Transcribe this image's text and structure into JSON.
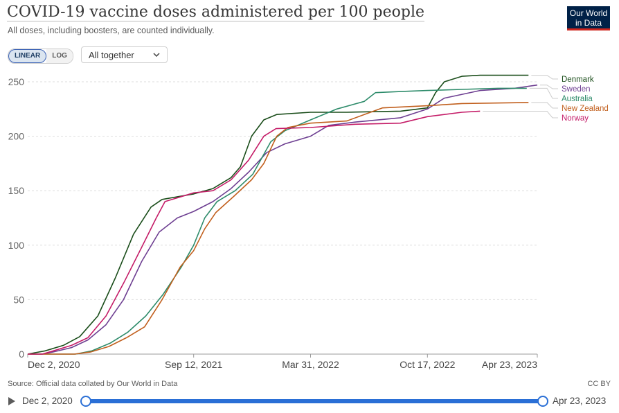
{
  "header": {
    "title": "COVID-19 vaccine doses administered per 100 people",
    "subtitle": "All doses, including boosters, are counted individually.",
    "logo_line1": "Our World",
    "logo_line2": "in Data"
  },
  "controls": {
    "linear_label": "LINEAR",
    "log_label": "LOG",
    "selected_scale": "LINEAR",
    "dropdown_value": "All together"
  },
  "footer": {
    "source": "Source: Official data collated by Our World in Data",
    "license": "CC BY"
  },
  "timeline": {
    "start_label": "Dec 2, 2020",
    "end_label": "Apr 23, 2023",
    "start_fraction": 0,
    "end_fraction": 1
  },
  "colors": {
    "Denmark": "#1a4d1a",
    "Sweden": "#6d3e91",
    "Australia": "#2d8b6a",
    "New Zealand": "#c15f1d",
    "Norway": "#c41b67",
    "grid": "#dddddd",
    "accent": "#2a6fd6"
  },
  "chart_data": {
    "type": "line",
    "title": "COVID-19 vaccine doses administered per 100 people",
    "subtitle": "All doses, including boosters, are counted individually.",
    "x_ticks": [
      "Dec 2, 2020",
      "Sep 12, 2021",
      "Mar 31, 2022",
      "Oct 17, 2022",
      "Apr 23, 2023"
    ],
    "x_range": [
      "2020-12-02",
      "2023-04-23"
    ],
    "ylim": [
      0,
      250
    ],
    "y_ticks": [
      0,
      50,
      100,
      150,
      200,
      250
    ],
    "grid": true,
    "legend": "right, labels at line ends",
    "series": [
      {
        "name": "Denmark",
        "points": [
          [
            "2020-12-02",
            0
          ],
          [
            "2021-01-01",
            3
          ],
          [
            "2021-02-01",
            8
          ],
          [
            "2021-03-01",
            16
          ],
          [
            "2021-04-01",
            35
          ],
          [
            "2021-05-01",
            70
          ],
          [
            "2021-06-01",
            110
          ],
          [
            "2021-07-01",
            135
          ],
          [
            "2021-07-20",
            142
          ],
          [
            "2021-09-12",
            147
          ],
          [
            "2021-10-15",
            152
          ],
          [
            "2021-11-15",
            162
          ],
          [
            "2021-12-01",
            172
          ],
          [
            "2021-12-20",
            200
          ],
          [
            "2022-01-10",
            215
          ],
          [
            "2022-02-01",
            220
          ],
          [
            "2022-03-31",
            222
          ],
          [
            "2022-06-01",
            222
          ],
          [
            "2022-09-01",
            223
          ],
          [
            "2022-10-17",
            226
          ],
          [
            "2022-10-31",
            240
          ],
          [
            "2022-11-15",
            250
          ],
          [
            "2022-12-15",
            255
          ],
          [
            "2023-01-15",
            256
          ],
          [
            "2023-04-08",
            256
          ]
        ]
      },
      {
        "name": "Sweden",
        "points": [
          [
            "2020-12-02",
            0
          ],
          [
            "2020-12-27",
            0
          ],
          [
            "2021-01-15",
            2
          ],
          [
            "2021-02-15",
            6
          ],
          [
            "2021-03-15",
            13
          ],
          [
            "2021-04-15",
            27
          ],
          [
            "2021-05-15",
            50
          ],
          [
            "2021-06-15",
            85
          ],
          [
            "2021-07-15",
            112
          ],
          [
            "2021-08-15",
            125
          ],
          [
            "2021-09-12",
            131
          ],
          [
            "2021-10-15",
            140
          ],
          [
            "2021-11-15",
            152
          ],
          [
            "2021-12-15",
            167
          ],
          [
            "2022-01-15",
            185
          ],
          [
            "2022-02-15",
            193
          ],
          [
            "2022-03-31",
            200
          ],
          [
            "2022-05-01",
            210
          ],
          [
            "2022-06-15",
            213
          ],
          [
            "2022-09-01",
            217
          ],
          [
            "2022-10-17",
            225
          ],
          [
            "2022-11-15",
            235
          ],
          [
            "2023-01-15",
            242
          ],
          [
            "2023-03-15",
            244
          ],
          [
            "2023-04-23",
            247
          ]
        ]
      },
      {
        "name": "Australia",
        "points": [
          [
            "2020-12-02",
            0
          ],
          [
            "2021-02-22",
            0
          ],
          [
            "2021-03-22",
            3
          ],
          [
            "2021-04-22",
            10
          ],
          [
            "2021-05-22",
            20
          ],
          [
            "2021-06-22",
            35
          ],
          [
            "2021-07-22",
            55
          ],
          [
            "2021-08-22",
            80
          ],
          [
            "2021-09-12",
            100
          ],
          [
            "2021-10-01",
            125
          ],
          [
            "2021-10-22",
            140
          ],
          [
            "2021-11-22",
            150
          ],
          [
            "2021-12-22",
            165
          ],
          [
            "2022-01-22",
            195
          ],
          [
            "2022-02-15",
            205
          ],
          [
            "2022-03-31",
            215
          ],
          [
            "2022-05-15",
            225
          ],
          [
            "2022-07-01",
            232
          ],
          [
            "2022-07-20",
            240
          ],
          [
            "2022-09-01",
            241
          ],
          [
            "2022-10-17",
            242
          ],
          [
            "2022-12-15",
            243
          ],
          [
            "2023-02-15",
            244
          ],
          [
            "2023-04-05",
            244
          ]
        ]
      },
      {
        "name": "New Zealand",
        "points": [
          [
            "2020-12-02",
            0
          ],
          [
            "2021-02-20",
            0
          ],
          [
            "2021-03-20",
            2
          ],
          [
            "2021-04-20",
            7
          ],
          [
            "2021-05-20",
            15
          ],
          [
            "2021-06-20",
            25
          ],
          [
            "2021-07-20",
            50
          ],
          [
            "2021-08-20",
            80
          ],
          [
            "2021-09-12",
            95
          ],
          [
            "2021-10-01",
            115
          ],
          [
            "2021-10-20",
            130
          ],
          [
            "2021-11-20",
            145
          ],
          [
            "2021-12-20",
            160
          ],
          [
            "2022-01-10",
            175
          ],
          [
            "2022-02-01",
            200
          ],
          [
            "2022-02-20",
            208
          ],
          [
            "2022-03-31",
            212
          ],
          [
            "2022-06-01",
            214
          ],
          [
            "2022-07-01",
            220
          ],
          [
            "2022-08-01",
            226
          ],
          [
            "2022-10-17",
            228
          ],
          [
            "2022-12-15",
            230
          ],
          [
            "2023-04-08",
            231
          ]
        ]
      },
      {
        "name": "Norway",
        "points": [
          [
            "2020-12-02",
            0
          ],
          [
            "2020-12-27",
            0
          ],
          [
            "2021-01-15",
            3
          ],
          [
            "2021-02-15",
            8
          ],
          [
            "2021-03-15",
            15
          ],
          [
            "2021-04-15",
            35
          ],
          [
            "2021-05-15",
            65
          ],
          [
            "2021-06-15",
            98
          ],
          [
            "2021-07-10",
            125
          ],
          [
            "2021-07-25",
            140
          ],
          [
            "2021-09-12",
            148
          ],
          [
            "2021-10-15",
            150
          ],
          [
            "2021-11-15",
            160
          ],
          [
            "2021-12-15",
            178
          ],
          [
            "2022-01-10",
            200
          ],
          [
            "2022-01-31",
            207
          ],
          [
            "2022-03-31",
            208
          ],
          [
            "2022-06-15",
            211
          ],
          [
            "2022-09-01",
            212
          ],
          [
            "2022-10-17",
            218
          ],
          [
            "2022-12-15",
            222
          ],
          [
            "2023-01-15",
            223
          ]
        ]
      }
    ]
  }
}
